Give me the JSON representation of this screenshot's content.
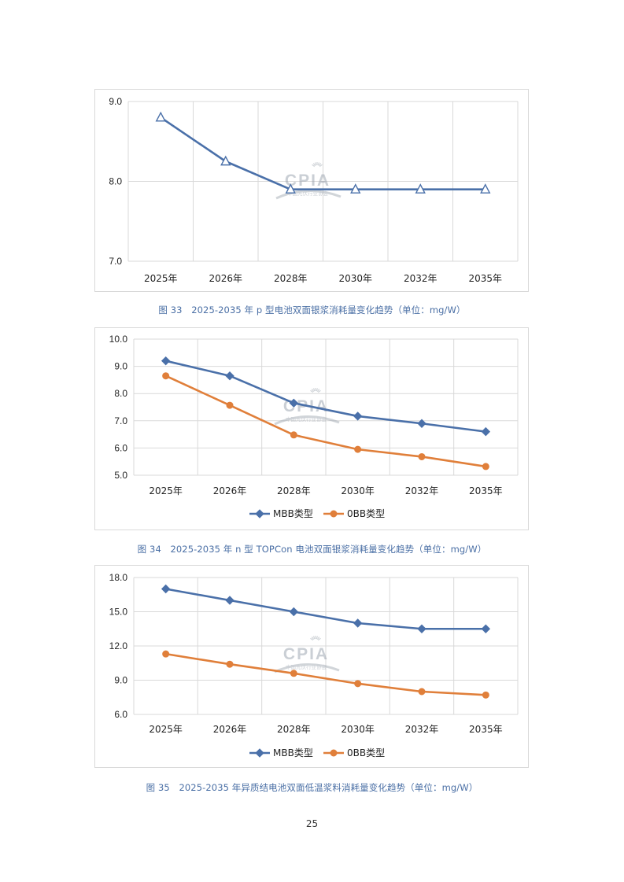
{
  "colors": {
    "blue": "#4a70a9",
    "orange": "#e07f3a",
    "grid": "#d9d9d9",
    "caption": "#4a6fa5"
  },
  "watermark": {
    "logo": "CPIA",
    "subtitle": "中国光伏行业协会"
  },
  "page_number": "25",
  "chart_data": [
    {
      "type": "line",
      "categories": [
        "2025年",
        "2026年",
        "2028年",
        "2030年",
        "2032年",
        "2035年"
      ],
      "ylim": [
        7.0,
        9.0
      ],
      "yticks": [
        "7.0",
        "8.0",
        "9.0"
      ],
      "ytick_values": [
        7.0,
        8.0,
        9.0
      ],
      "series": [
        {
          "name": "",
          "marker": "triangle-open",
          "color": "#4a70a9",
          "values": [
            8.8,
            8.25,
            7.9,
            7.9,
            7.9,
            7.9
          ]
        }
      ],
      "legend": false,
      "caption": "图 33　2025-2035 年 p 型电池双面银浆消耗量变化趋势（单位：mg/W）"
    },
    {
      "type": "line",
      "categories": [
        "2025年",
        "2026年",
        "2028年",
        "2030年",
        "2032年",
        "2035年"
      ],
      "ylim": [
        5.0,
        10.0
      ],
      "yticks": [
        "5.0",
        "6.0",
        "7.0",
        "8.0",
        "9.0",
        "10.0"
      ],
      "ytick_values": [
        5.0,
        6.0,
        7.0,
        8.0,
        9.0,
        10.0
      ],
      "series": [
        {
          "name": "MBB类型",
          "marker": "diamond",
          "color": "#4a70a9",
          "values": [
            9.2,
            8.65,
            7.65,
            7.17,
            6.9,
            6.6
          ]
        },
        {
          "name": "0BB类型",
          "marker": "circle",
          "color": "#e07f3a",
          "values": [
            8.65,
            7.57,
            6.48,
            5.95,
            5.68,
            5.32
          ]
        }
      ],
      "legend": true,
      "caption": "图 34　2025-2035 年 n 型 TOPCon 电池双面银浆消耗量变化趋势（单位：mg/W）"
    },
    {
      "type": "line",
      "categories": [
        "2025年",
        "2026年",
        "2028年",
        "2030年",
        "2032年",
        "2035年"
      ],
      "ylim": [
        6.0,
        18.0
      ],
      "yticks": [
        "6.0",
        "9.0",
        "12.0",
        "15.0",
        "18.0"
      ],
      "ytick_values": [
        6.0,
        9.0,
        12.0,
        15.0,
        18.0
      ],
      "series": [
        {
          "name": "MBB类型",
          "marker": "diamond",
          "color": "#4a70a9",
          "values": [
            17.0,
            16.0,
            15.0,
            14.0,
            13.5,
            13.5
          ]
        },
        {
          "name": "0BB类型",
          "marker": "circle",
          "color": "#e07f3a",
          "values": [
            11.3,
            10.4,
            9.6,
            8.7,
            8.0,
            7.7
          ]
        }
      ],
      "legend": true,
      "caption": "图 35　2025-2035 年异质结电池双面低温浆料消耗量变化趋势（单位：mg/W）"
    }
  ]
}
